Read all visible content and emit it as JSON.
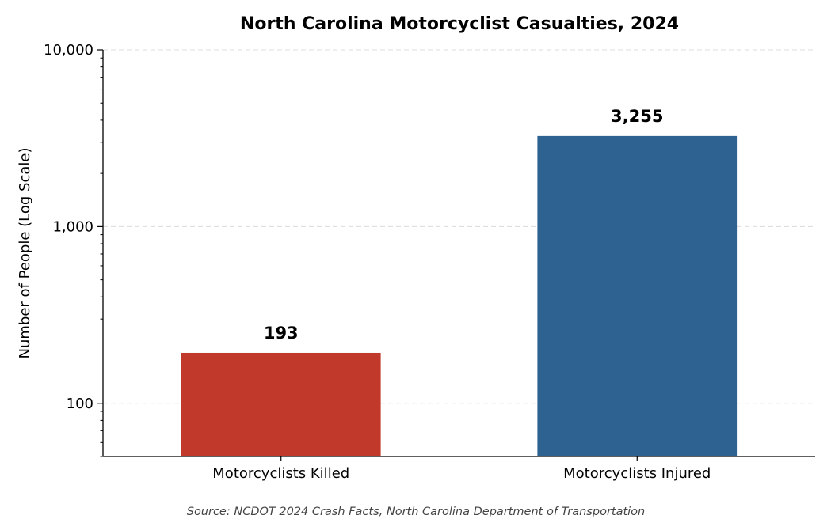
{
  "chart_data": {
    "type": "bar",
    "title": "North Carolina Motorcyclist Casualties, 2024",
    "ylabel": "Number of People (Log Scale)",
    "xlabel": "",
    "yscale": "log",
    "ylim": [
      50,
      10000
    ],
    "yticks": [
      100,
      1000,
      10000
    ],
    "ytick_labels": [
      "100",
      "1,000",
      "10,000"
    ],
    "grid": "horizontal dashed",
    "categories": [
      "Motorcyclists Killed",
      "Motorcyclists Injured"
    ],
    "values": [
      193,
      3255
    ],
    "data_labels": [
      "193",
      "3,255"
    ],
    "colors": [
      "#c0392b",
      "#2e6391"
    ],
    "source": "Source: NCDOT 2024 Crash Facts, North Carolina Department of Transportation"
  }
}
